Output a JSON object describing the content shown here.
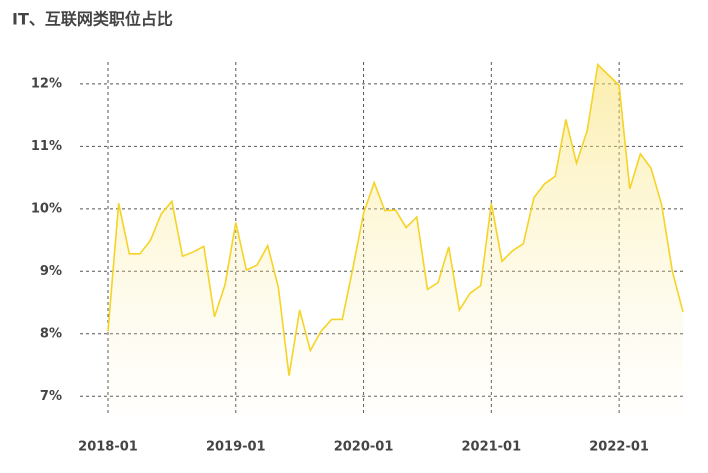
{
  "chart_data": {
    "type": "area",
    "title": "IT、互联网类职位占比",
    "x": [
      "2018-01",
      "2018-02",
      "2018-03",
      "2018-04",
      "2018-05",
      "2018-06",
      "2018-07",
      "2018-08",
      "2018-09",
      "2018-10",
      "2018-11",
      "2018-12",
      "2019-01",
      "2019-02",
      "2019-03",
      "2019-04",
      "2019-05",
      "2019-06",
      "2019-07",
      "2019-08",
      "2019-09",
      "2019-10",
      "2019-11",
      "2019-12",
      "2020-01",
      "2020-02",
      "2020-03",
      "2020-04",
      "2020-05",
      "2020-06",
      "2020-07",
      "2020-08",
      "2020-09",
      "2020-10",
      "2020-11",
      "2020-12",
      "2021-01",
      "2021-02",
      "2021-03",
      "2021-04",
      "2021-05",
      "2021-06",
      "2021-07",
      "2021-08",
      "2021-09",
      "2021-10",
      "2021-11",
      "2021-12",
      "2022-01",
      "2022-02",
      "2022-03",
      "2022-04",
      "2022-05",
      "2022-06",
      "2022-07"
    ],
    "values": [
      8.04,
      10.09,
      9.28,
      9.28,
      9.5,
      9.92,
      10.12,
      9.24,
      9.31,
      9.4,
      8.27,
      8.79,
      9.78,
      9.02,
      9.1,
      9.41,
      8.74,
      7.33,
      8.38,
      7.73,
      8.04,
      8.23,
      8.23,
      9.05,
      9.93,
      10.42,
      9.97,
      9.98,
      9.7,
      9.87,
      8.71,
      8.82,
      9.39,
      8.38,
      8.65,
      8.77,
      10.09,
      9.16,
      9.33,
      9.44,
      10.18,
      10.4,
      10.52,
      11.43,
      10.73,
      11.25,
      12.31,
      12.14,
      11.98,
      10.32,
      10.88,
      10.65,
      10.06,
      9.0,
      8.35
    ],
    "color": "#f5d327",
    "xticks": [
      "2018-01",
      "2019-01",
      "2020-01",
      "2021-01",
      "2022-01"
    ],
    "ylim": [
      6.7,
      12.35
    ],
    "yticks": [
      {
        "value": 7,
        "label": "7%"
      },
      {
        "value": 8,
        "label": "8%"
      },
      {
        "value": 9,
        "label": "9%"
      },
      {
        "value": 10,
        "label": "10%"
      },
      {
        "value": 11,
        "label": "11%"
      },
      {
        "value": 12,
        "label": "12%"
      }
    ],
    "grid": true
  }
}
